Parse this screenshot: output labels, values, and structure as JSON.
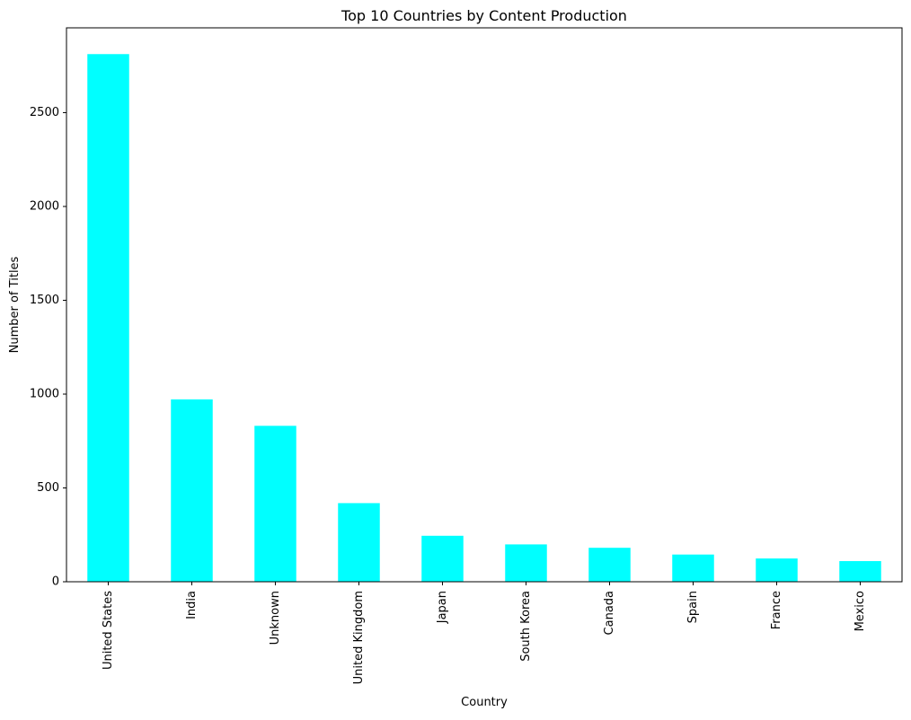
{
  "chart_data": {
    "type": "bar",
    "title": "Top 10 Countries by Content Production",
    "xlabel": "Country",
    "ylabel": "Number of Titles",
    "categories": [
      "United States",
      "India",
      "Unknown",
      "United Kingdom",
      "Japan",
      "South Korea",
      "Canada",
      "Spain",
      "France",
      "Mexico"
    ],
    "values": [
      2812,
      972,
      831,
      419,
      245,
      199,
      181,
      145,
      124,
      110
    ],
    "ylim": [
      0,
      2952
    ],
    "yticks": [
      0,
      500,
      1000,
      1500,
      2000,
      2500
    ],
    "bar_color": "#00ffff",
    "grid": false,
    "legend": "none"
  }
}
